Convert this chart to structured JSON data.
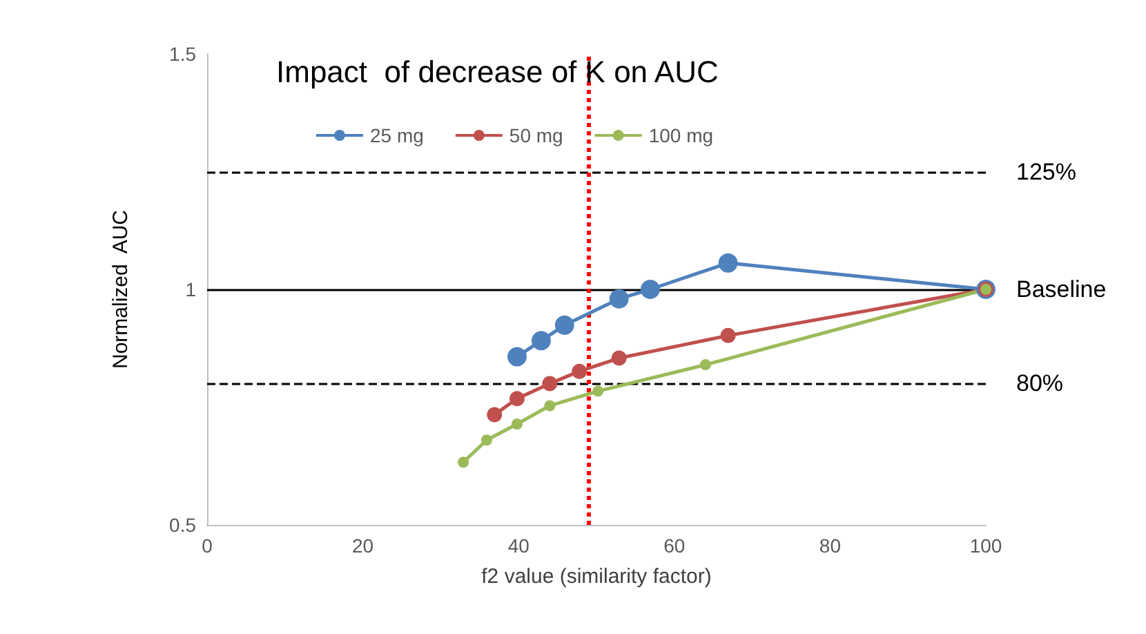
{
  "chart_data": {
    "type": "line",
    "title": "Impact  of decrease of K on AUC",
    "xlabel": "f2 value (similarity factor)",
    "ylabel": "Normalized  AUC",
    "series": [
      {
        "name": "25 mg",
        "color": "#4f81bd",
        "x": [
          39.8,
          42.9,
          45.9,
          52.9,
          56.9,
          66.9,
          100
        ],
        "values": [
          0.857,
          0.891,
          0.924,
          0.98,
          1.0,
          1.056,
          1.0
        ]
      },
      {
        "name": "50 mg",
        "color": "#c0504d",
        "x": [
          36.9,
          39.8,
          44,
          47.8,
          52.9,
          66.9,
          100
        ],
        "values": [
          0.734,
          0.768,
          0.8,
          0.826,
          0.854,
          0.902,
          1.0
        ]
      },
      {
        "name": "100 mg",
        "color": "#9bbb59",
        "x": [
          32.9,
          35.9,
          39.8,
          44,
          50.2,
          64,
          100
        ],
        "values": [
          0.633,
          0.68,
          0.714,
          0.753,
          0.784,
          0.84,
          1.0
        ]
      }
    ],
    "xlim": [
      0,
      100
    ],
    "xticks": [
      0,
      20,
      40,
      60,
      80,
      100
    ],
    "ylim": [
      0.5,
      1.5
    ],
    "yticks": [
      0.5,
      1,
      1.5
    ],
    "ref_lines": [
      {
        "axis": "y",
        "value": 1.25,
        "label": "125%",
        "color": "#000000",
        "line_style": "dashed"
      },
      {
        "axis": "y",
        "value": 1,
        "label": "Baseline",
        "color": "#000000",
        "line_style": "solid"
      },
      {
        "axis": "y",
        "value": 0.8,
        "label": "80%",
        "color": "#000000",
        "line_style": "dashed"
      },
      {
        "axis": "x",
        "value": 49,
        "label": null,
        "color": "#ff0000",
        "line_style": "dotted"
      }
    ],
    "grid": false,
    "legend": "top",
    "marker": "circle",
    "line_style": "solid"
  }
}
